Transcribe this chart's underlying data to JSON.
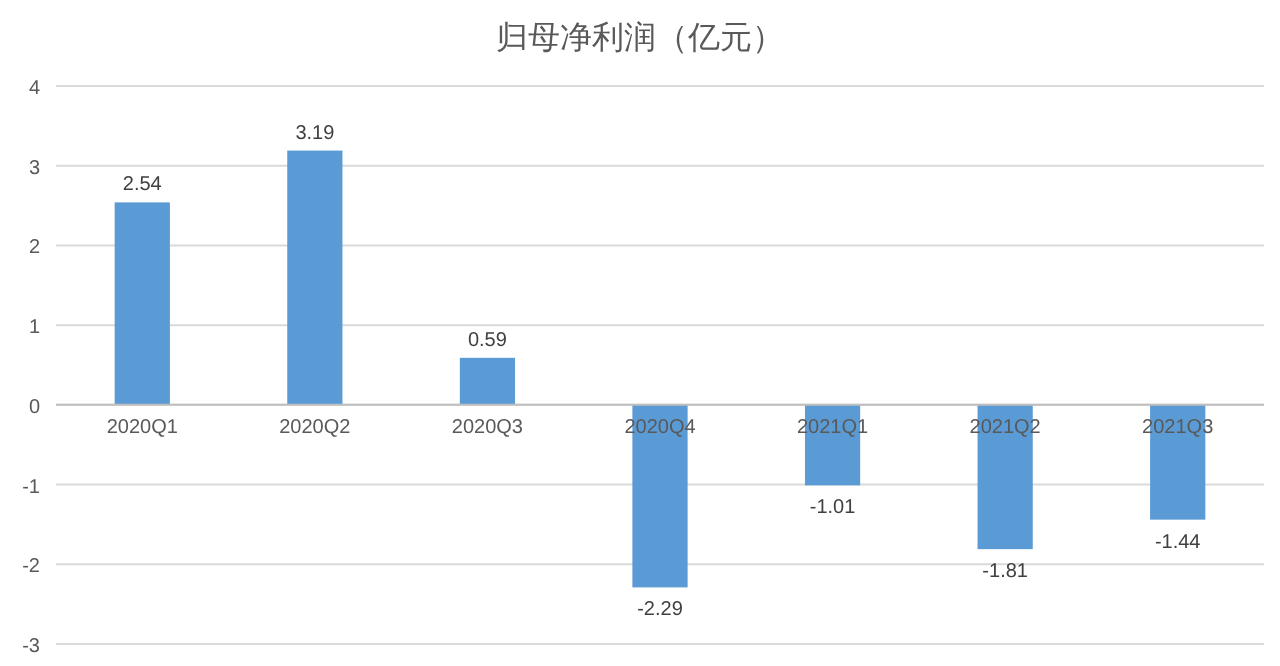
{
  "chart_data": {
    "type": "bar",
    "title": "归母净利润（亿元）",
    "categories": [
      "2020Q1",
      "2020Q2",
      "2020Q3",
      "2020Q4",
      "2021Q1",
      "2021Q2",
      "2021Q3"
    ],
    "values": [
      2.54,
      3.19,
      0.59,
      -2.29,
      -1.01,
      -1.81,
      -1.44
    ],
    "color": "#5b9bd5",
    "ylim": [
      -3,
      4
    ],
    "yticks": [
      -3,
      -2,
      -1,
      0,
      1,
      2,
      3,
      4
    ],
    "grid": "y",
    "data_labels": true
  }
}
